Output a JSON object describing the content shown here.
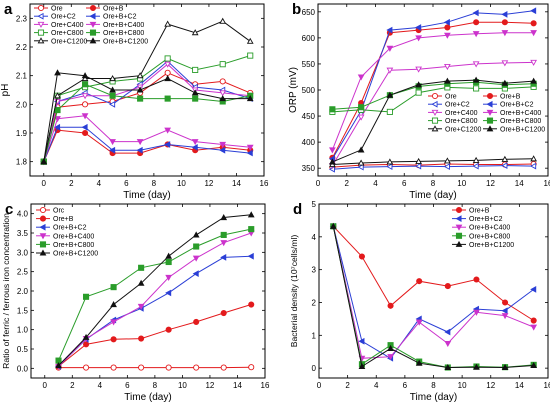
{
  "chart_data": [
    {
      "panel": "a",
      "type": "line",
      "xlabel": "Time (day)",
      "ylabel": "pH",
      "xlim": [
        -1,
        16
      ],
      "ylim": [
        1.75,
        2.35
      ],
      "xticks": [
        0,
        2,
        4,
        6,
        8,
        10,
        12,
        14,
        16
      ],
      "yticks": [
        1.8,
        1.9,
        2.0,
        2.1,
        2.2,
        2.3
      ],
      "ytick_labels": [
        "1.8",
        "1.9",
        "2.0",
        "2.1",
        "2.2",
        "2.3"
      ],
      "x": [
        0,
        1,
        3,
        5,
        7,
        9,
        11,
        13,
        15
      ],
      "legend": {
        "placement": "top-left",
        "columns": 2
      },
      "series": [
        {
          "name": "Ore",
          "color": "#e31a1c",
          "marker": "circle-open",
          "values": [
            1.8,
            1.99,
            2.0,
            2.01,
            2.04,
            2.11,
            2.07,
            2.08,
            2.04
          ]
        },
        {
          "name": "Ore+B",
          "color": "#e31a1c",
          "marker": "circle",
          "values": [
            1.8,
            1.91,
            1.9,
            1.83,
            1.83,
            1.86,
            1.84,
            1.85,
            1.84
          ]
        },
        {
          "name": "Ore+C2",
          "color": "#2b3fd6",
          "marker": "tri-left-open",
          "values": [
            1.8,
            2.01,
            2.04,
            2.0,
            2.07,
            2.15,
            2.06,
            2.05,
            2.02
          ]
        },
        {
          "name": "Ore+B+C2",
          "color": "#2b3fd6",
          "marker": "tri-left",
          "values": [
            1.8,
            1.92,
            1.92,
            1.84,
            1.84,
            1.86,
            1.85,
            1.84,
            1.83
          ]
        },
        {
          "name": "Ore+C400",
          "color": "#cc33cc",
          "marker": "tri-down-open",
          "values": [
            1.8,
            2.01,
            2.03,
            2.03,
            2.06,
            2.14,
            2.05,
            2.04,
            2.03
          ]
        },
        {
          "name": "Ore+B+C400",
          "color": "#cc33cc",
          "marker": "tri-down",
          "values": [
            1.8,
            1.95,
            1.96,
            1.87,
            1.87,
            1.91,
            1.87,
            1.86,
            1.85
          ]
        },
        {
          "name": "Ore+C800",
          "color": "#2a9d2a",
          "marker": "square-open",
          "values": [
            1.8,
            2.03,
            2.06,
            2.08,
            2.09,
            2.16,
            2.12,
            2.14,
            2.17
          ]
        },
        {
          "name": "Ore+B+C800",
          "color": "#2a9d2a",
          "marker": "square",
          "values": [
            1.8,
            1.98,
            2.07,
            2.03,
            2.02,
            2.02,
            2.02,
            2.01,
            2.03
          ]
        },
        {
          "name": "Ore+C1200",
          "color": "#111111",
          "marker": "tri-up-open",
          "values": [
            1.8,
            2.03,
            2.09,
            2.09,
            2.1,
            2.28,
            2.25,
            2.29,
            2.22
          ]
        },
        {
          "name": "Ore+B+C1200",
          "color": "#111111",
          "marker": "tri-up",
          "values": [
            1.8,
            2.11,
            2.1,
            2.05,
            2.05,
            2.09,
            2.04,
            2.02,
            2.02
          ]
        }
      ]
    },
    {
      "panel": "b",
      "type": "line",
      "xlabel": "Time (day)",
      "ylabel": "ORP (mV)",
      "xlim": [
        0,
        16
      ],
      "ylim": [
        335,
        665
      ],
      "xticks": [
        0,
        2,
        4,
        6,
        8,
        10,
        12,
        14,
        16
      ],
      "yticks": [
        350,
        400,
        450,
        500,
        550,
        600,
        650
      ],
      "ytick_labels": [
        "350",
        "400",
        "450",
        "500",
        "550",
        "600",
        "650"
      ],
      "x": [
        1,
        3,
        5,
        7,
        9,
        11,
        13,
        15
      ],
      "legend": {
        "placement": "bottom-right",
        "columns": 2
      },
      "series": [
        {
          "name": "Ore",
          "color": "#e31a1c",
          "marker": "circle-open",
          "values": [
            352,
            356,
            357,
            356,
            358,
            357,
            357,
            358
          ]
        },
        {
          "name": "Ore+B",
          "color": "#e31a1c",
          "marker": "circle",
          "values": [
            370,
            475,
            610,
            615,
            620,
            630,
            630,
            628
          ]
        },
        {
          "name": "Ore+C2",
          "color": "#2b3fd6",
          "marker": "tri-left-open",
          "values": [
            348,
            352,
            353,
            354,
            353,
            354,
            355,
            354
          ]
        },
        {
          "name": "Ore+B+C2",
          "color": "#2b3fd6",
          "marker": "tri-left",
          "values": [
            368,
            460,
            615,
            620,
            630,
            648,
            645,
            652
          ]
        },
        {
          "name": "Ore+C400",
          "color": "#cc33cc",
          "marker": "tri-down-open",
          "values": [
            355,
            448,
            538,
            540,
            545,
            550,
            552,
            553
          ]
        },
        {
          "name": "Ore+B+C400",
          "color": "#cc33cc",
          "marker": "tri-down",
          "values": [
            385,
            525,
            580,
            600,
            605,
            608,
            610,
            610
          ]
        },
        {
          "name": "Ore+C800",
          "color": "#2a9d2a",
          "marker": "square-open",
          "values": [
            458,
            462,
            458,
            495,
            505,
            503,
            503,
            506
          ]
        },
        {
          "name": "Ore+B+C800",
          "color": "#2a9d2a",
          "marker": "square",
          "values": [
            463,
            467,
            490,
            507,
            512,
            515,
            510,
            512
          ]
        },
        {
          "name": "Ore+C1200",
          "color": "#111111",
          "marker": "tri-up-open",
          "values": [
            357,
            360,
            362,
            363,
            364,
            365,
            367,
            368
          ]
        },
        {
          "name": "Ore+B+C1200",
          "color": "#111111",
          "marker": "tri-up",
          "values": [
            362,
            385,
            490,
            510,
            517,
            519,
            513,
            517
          ]
        }
      ]
    },
    {
      "panel": "c",
      "type": "line",
      "xlabel": "Time (day)",
      "ylabel": "Ratio of ferric / ferrous iron concentration",
      "xlim": [
        -1,
        16
      ],
      "ylim": [
        -0.25,
        4.25
      ],
      "xticks": [
        0,
        2,
        4,
        6,
        8,
        10,
        12,
        14,
        16
      ],
      "yticks": [
        0.0,
        0.5,
        1.0,
        1.5,
        2.0,
        2.5,
        3.0,
        3.5,
        4.0
      ],
      "ytick_labels": [
        "0.0",
        "0.5",
        "1.0",
        "1.5",
        "2.0",
        "2.5",
        "3.0",
        "3.5",
        "4.0"
      ],
      "x": [
        1,
        3,
        5,
        7,
        9,
        11,
        13,
        15
      ],
      "legend": {
        "placement": "top-left",
        "columns": 1
      },
      "series": [
        {
          "name": "Orc",
          "color": "#e31a1c",
          "marker": "circle-open",
          "values": [
            0.02,
            0.02,
            0.02,
            0.02,
            0.02,
            0.02,
            0.02,
            0.03
          ]
        },
        {
          "name": "Ore+B",
          "color": "#e31a1c",
          "marker": "circle",
          "values": [
            0.05,
            0.62,
            0.75,
            0.77,
            1.0,
            1.2,
            1.43,
            1.65
          ]
        },
        {
          "name": "Ore+B+C2",
          "color": "#2b3fd6",
          "marker": "tri-left",
          "values": [
            0.05,
            0.75,
            1.25,
            1.55,
            1.95,
            2.45,
            2.87,
            2.9
          ]
        },
        {
          "name": "Ore+B+C400",
          "color": "#cc33cc",
          "marker": "tri-down",
          "values": [
            0.05,
            0.77,
            1.2,
            1.6,
            2.35,
            2.85,
            3.25,
            3.5
          ]
        },
        {
          "name": "Ore+B+C800",
          "color": "#2a9d2a",
          "marker": "square",
          "values": [
            0.2,
            1.85,
            2.1,
            2.6,
            2.75,
            3.15,
            3.45,
            3.6
          ]
        },
        {
          "name": "Ore+B+C1200",
          "color": "#111111",
          "marker": "tri-up",
          "values": [
            0.07,
            0.8,
            1.65,
            2.2,
            2.9,
            3.45,
            3.9,
            3.97
          ]
        }
      ]
    },
    {
      "panel": "d",
      "type": "line",
      "xlabel": "Time (day)",
      "ylabel": "Bacterial density (10⁷cells/ml)",
      "xlim": [
        0,
        16
      ],
      "ylim": [
        -0.3,
        5.0
      ],
      "xticks": [
        0,
        2,
        4,
        6,
        8,
        10,
        12,
        14,
        16
      ],
      "yticks": [
        0,
        1,
        2,
        3,
        4,
        5
      ],
      "ytick_labels": [
        "0",
        "1",
        "2",
        "3",
        "4",
        "5"
      ],
      "x": [
        1,
        3,
        5,
        7,
        9,
        11,
        13,
        15
      ],
      "legend": {
        "placement": "top-right",
        "columns": 1
      },
      "series": [
        {
          "name": "Ore+B",
          "color": "#e31a1c",
          "marker": "circle",
          "values": [
            4.32,
            3.4,
            1.9,
            2.65,
            2.5,
            2.7,
            2.0,
            1.45
          ]
        },
        {
          "name": "Ore+B+C2",
          "color": "#2b3fd6",
          "marker": "tri-left",
          "values": [
            4.32,
            0.82,
            0.3,
            1.5,
            1.1,
            1.8,
            1.75,
            2.4
          ]
        },
        {
          "name": "Ore+B+C400",
          "color": "#cc33cc",
          "marker": "tri-down",
          "values": [
            4.32,
            0.3,
            0.35,
            1.4,
            0.75,
            1.7,
            1.6,
            1.25
          ]
        },
        {
          "name": "Ore+B+C800",
          "color": "#2a9d2a",
          "marker": "square",
          "values": [
            4.32,
            0.12,
            0.7,
            0.2,
            0.02,
            0.05,
            0.03,
            0.1
          ]
        },
        {
          "name": "Ore+B+C1200",
          "color": "#111111",
          "marker": "tri-up",
          "values": [
            4.32,
            0.05,
            0.6,
            0.15,
            0.02,
            0.03,
            0.02,
            0.08
          ]
        }
      ]
    }
  ]
}
